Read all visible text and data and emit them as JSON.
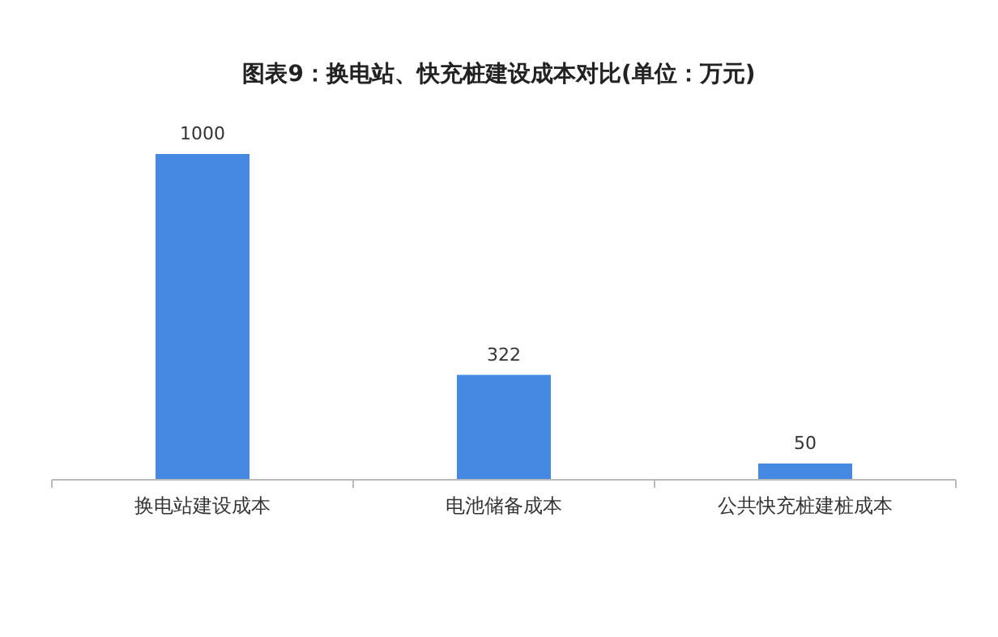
{
  "chart_data": {
    "type": "bar",
    "title": "图表9：换电站、快充桩建设成本对比(单位：万元)",
    "categories": [
      "换电站建设成本",
      "电池储备成本",
      "公共快充桩建桩成本"
    ],
    "values": [
      1000,
      322,
      50
    ],
    "color": "#4589e3",
    "data_labels": true
  }
}
